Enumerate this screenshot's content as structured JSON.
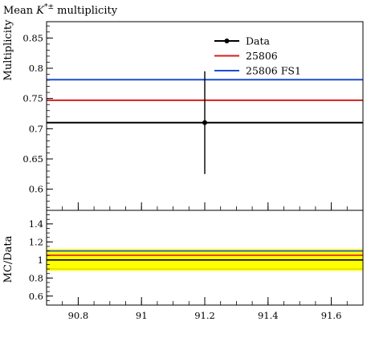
{
  "chart_data": {
    "type": "line",
    "title": "Mean K*± multiplicity",
    "title_parts": {
      "prefix": "Mean ",
      "symbol": "K",
      "superscript": "*±",
      "suffix": " multiplicity"
    },
    "main": {
      "ylabel": "Multiplicity",
      "ylim": [
        0.565,
        0.877
      ],
      "yticks": [
        {
          "value": 0.6,
          "label": "0.6"
        },
        {
          "value": 0.65,
          "label": "0.65"
        },
        {
          "value": 0.7,
          "label": "0.7"
        },
        {
          "value": 0.75,
          "label": "0.75"
        },
        {
          "value": 0.8,
          "label": "0.8"
        },
        {
          "value": 0.85,
          "label": "0.85"
        }
      ]
    },
    "ratio": {
      "ylabel": "MC/Data",
      "ylim": [
        0.5,
        1.55
      ],
      "yticks": [
        {
          "value": 0.6,
          "label": "0.6"
        },
        {
          "value": 0.8,
          "label": "0.8"
        },
        {
          "value": 1.0,
          "label": "1"
        },
        {
          "value": 1.2,
          "label": "1.2"
        },
        {
          "value": 1.4,
          "label": "1.4"
        }
      ],
      "band": {
        "low": 0.88,
        "high": 1.12,
        "edge_low": 0.9,
        "edge_high": 1.1,
        "color": "#ffff00"
      }
    },
    "xlim": [
      90.7,
      91.7
    ],
    "xticks": [
      {
        "value": 90.8,
        "label": "90.8"
      },
      {
        "value": 91.0,
        "label": "91"
      },
      {
        "value": 91.2,
        "label": "91.2"
      },
      {
        "value": 91.4,
        "label": "91.4"
      },
      {
        "value": 91.6,
        "label": "91.6"
      }
    ],
    "data_point": {
      "x": 91.2,
      "y": 0.71,
      "err_low": 0.625,
      "err_high": 0.795
    },
    "series": [
      {
        "name": "Data",
        "value": 0.71,
        "ratio": 1.0,
        "color": "#000000",
        "marker": true
      },
      {
        "name": "25806",
        "value": 0.747,
        "ratio": 1.052,
        "color": "#d81e1e",
        "marker": false
      },
      {
        "name": "25806 FS1",
        "value": 0.781,
        "ratio": 1.1,
        "color": "#1a4fd1",
        "marker": false
      }
    ],
    "legend_position": "top-right"
  }
}
